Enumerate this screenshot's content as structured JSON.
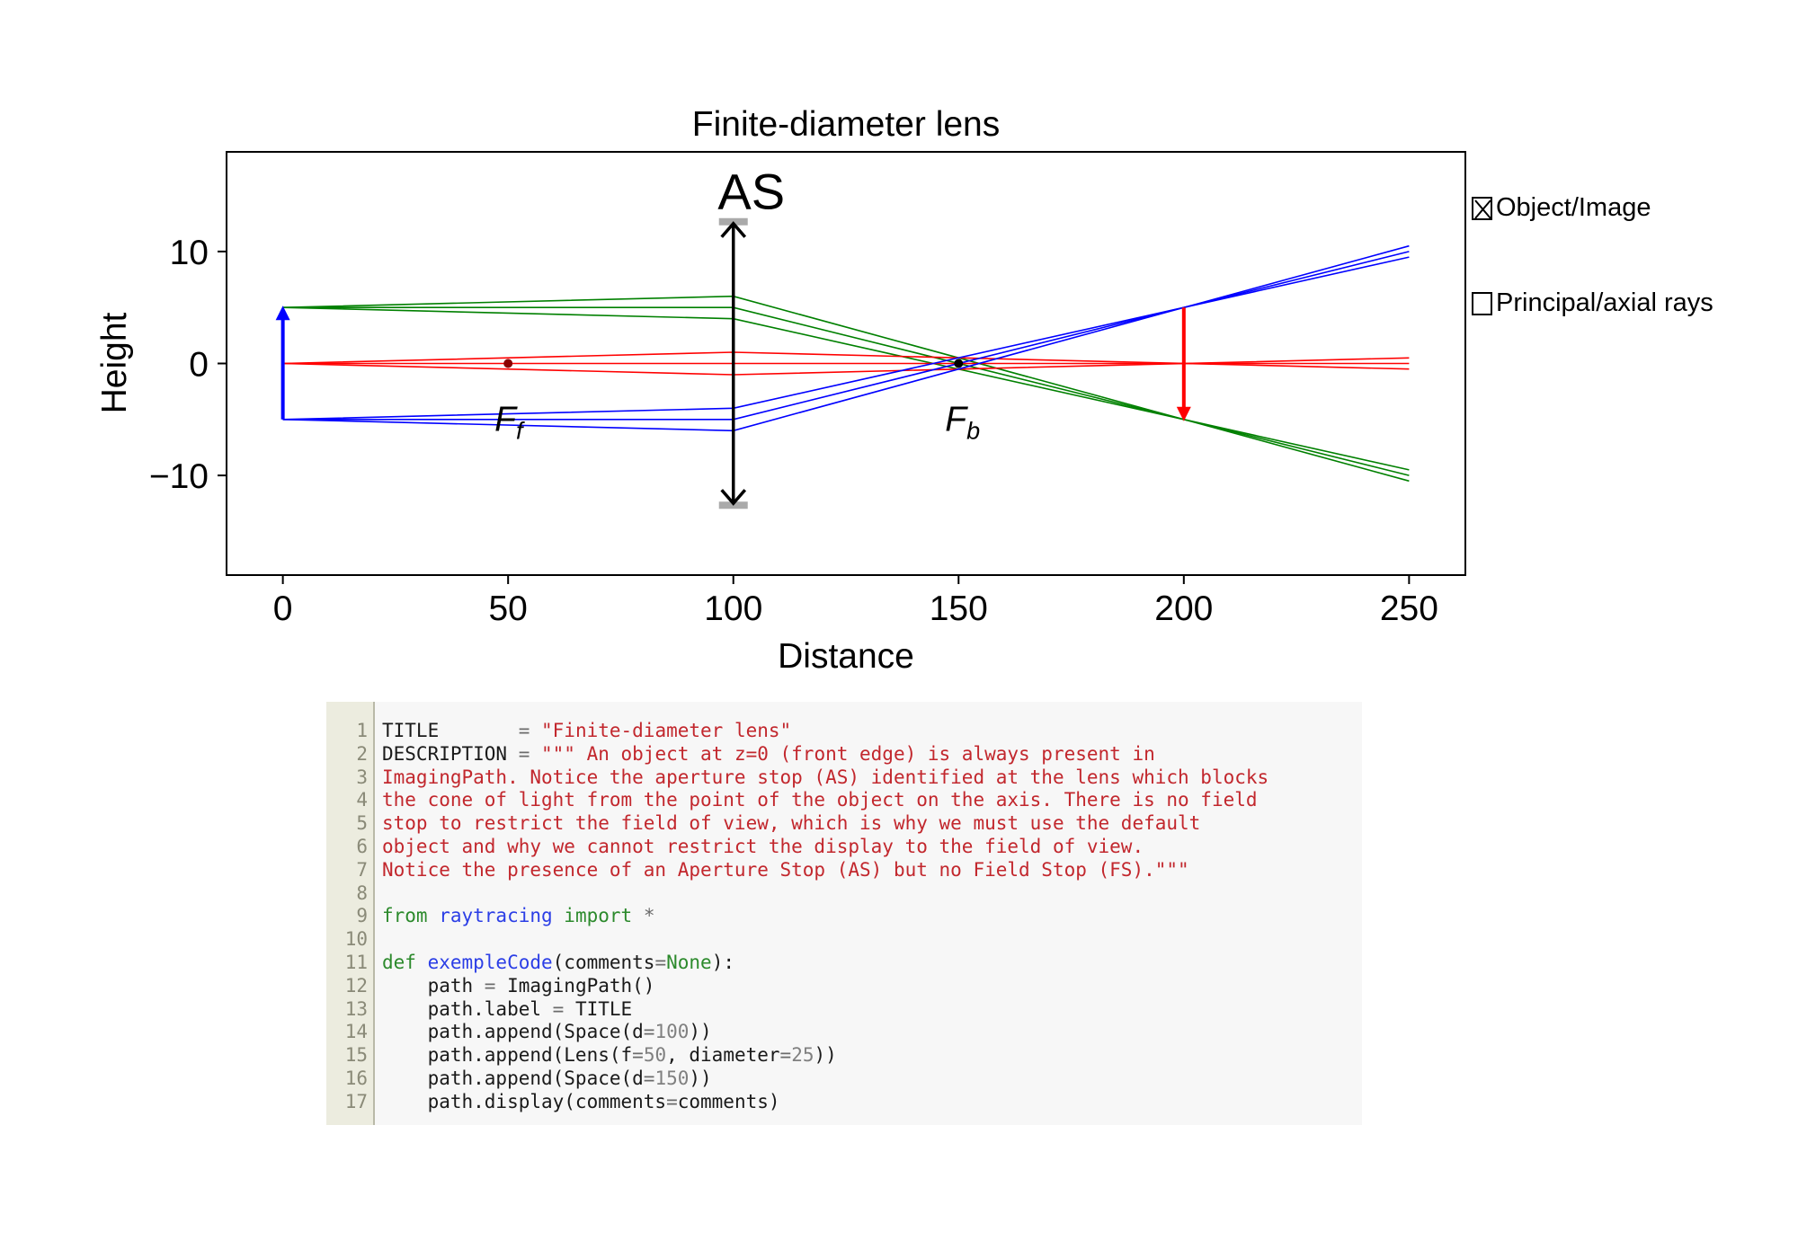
{
  "chart_data": {
    "type": "line",
    "title": "Finite-diameter lens",
    "xlabel": "Distance",
    "ylabel": "Height",
    "xlim": [
      -12.5,
      262.5
    ],
    "ylim": [
      -18.9,
      18.9
    ],
    "xticks": [
      0,
      50,
      100,
      150,
      200,
      250
    ],
    "yticks": [
      -10,
      0,
      10
    ],
    "xtick_labels": [
      "0",
      "50",
      "100",
      "150",
      "200",
      "250"
    ],
    "ytick_labels": [
      "−10",
      "0",
      "10"
    ],
    "grid": false,
    "lens": {
      "position": 100,
      "focal_length": 50,
      "diameter": 25,
      "label": "AS"
    },
    "object": {
      "position": 0,
      "from": -5,
      "to": 5
    },
    "image": {
      "position": 200,
      "from": 5,
      "to": -5
    },
    "focal_points": [
      {
        "x": 50,
        "y": 0,
        "label": "F",
        "subscript": "f"
      },
      {
        "x": 150,
        "y": 0,
        "label": "F",
        "subscript": "b"
      }
    ],
    "ray_groups": [
      {
        "color": "#008000",
        "y0": 5,
        "heights_at_lens": [
          6,
          5,
          4
        ]
      },
      {
        "color": "#ff0000",
        "y0": 0,
        "heights_at_lens": [
          1,
          0,
          -1
        ]
      },
      {
        "color": "#0000ff",
        "y0": -5,
        "heights_at_lens": [
          -4,
          -5,
          -6
        ]
      }
    ],
    "legend": {
      "placement": "right",
      "items": [
        {
          "label": "Object/Image",
          "checked": true
        },
        {
          "label": "Principal/axial rays",
          "checked": false
        }
      ]
    }
  },
  "code": {
    "line_numbers": [
      "1",
      "2",
      "3",
      "4",
      "5",
      "6",
      "7",
      "8",
      "9",
      "10",
      "11",
      "12",
      "13",
      "14",
      "15",
      "16",
      "17"
    ],
    "lines": [
      [
        {
          "t": "TITLE       ",
          "c": "plain"
        },
        {
          "t": "= ",
          "c": "op"
        },
        {
          "t": "\"Finite-diameter lens\"",
          "c": "str"
        }
      ],
      [
        {
          "t": "DESCRIPTION ",
          "c": "plain"
        },
        {
          "t": "= ",
          "c": "op"
        },
        {
          "t": "\"\"\" An object at z=0 (front edge) is always present in",
          "c": "str"
        }
      ],
      [
        {
          "t": "ImagingPath. Notice the aperture stop (AS) identified at the lens which blocks",
          "c": "str"
        }
      ],
      [
        {
          "t": "the cone of light from the point of the object on the axis. There is no field",
          "c": "str"
        }
      ],
      [
        {
          "t": "stop to restrict the field of view, which is why we must use the default",
          "c": "str"
        }
      ],
      [
        {
          "t": "object and why we cannot restrict the display to the field of view.",
          "c": "str"
        }
      ],
      [
        {
          "t": "Notice the presence of an Aperture Stop (AS) but no Field Stop (FS).\"\"\"",
          "c": "str"
        }
      ],
      [],
      [
        {
          "t": "from ",
          "c": "kw"
        },
        {
          "t": "raytracing ",
          "c": "fn"
        },
        {
          "t": "import ",
          "c": "kw"
        },
        {
          "t": "*",
          "c": "op"
        }
      ],
      [],
      [
        {
          "t": "def ",
          "c": "kw"
        },
        {
          "t": "exempleCode",
          "c": "fn"
        },
        {
          "t": "(comments",
          "c": "plain"
        },
        {
          "t": "=",
          "c": "op"
        },
        {
          "t": "None",
          "c": "kw"
        },
        {
          "t": "):",
          "c": "plain"
        }
      ],
      [
        {
          "t": "    path ",
          "c": "plain"
        },
        {
          "t": "= ",
          "c": "op"
        },
        {
          "t": "ImagingPath()",
          "c": "plain"
        }
      ],
      [
        {
          "t": "    path.label ",
          "c": "plain"
        },
        {
          "t": "= ",
          "c": "op"
        },
        {
          "t": "TITLE",
          "c": "plain"
        }
      ],
      [
        {
          "t": "    path.append(Space(d",
          "c": "plain"
        },
        {
          "t": "=",
          "c": "op"
        },
        {
          "t": "100",
          "c": "num"
        },
        {
          "t": "))",
          "c": "plain"
        }
      ],
      [
        {
          "t": "    path.append(Lens(f",
          "c": "plain"
        },
        {
          "t": "=",
          "c": "op"
        },
        {
          "t": "50",
          "c": "num"
        },
        {
          "t": ", diameter",
          "c": "plain"
        },
        {
          "t": "=",
          "c": "op"
        },
        {
          "t": "25",
          "c": "num"
        },
        {
          "t": "))",
          "c": "plain"
        }
      ],
      [
        {
          "t": "    path.append(Space(d",
          "c": "plain"
        },
        {
          "t": "=",
          "c": "op"
        },
        {
          "t": "150",
          "c": "num"
        },
        {
          "t": "))",
          "c": "plain"
        }
      ],
      [
        {
          "t": "    path.display(comments",
          "c": "plain"
        },
        {
          "t": "=",
          "c": "op"
        },
        {
          "t": "comments)",
          "c": "plain"
        }
      ]
    ]
  }
}
